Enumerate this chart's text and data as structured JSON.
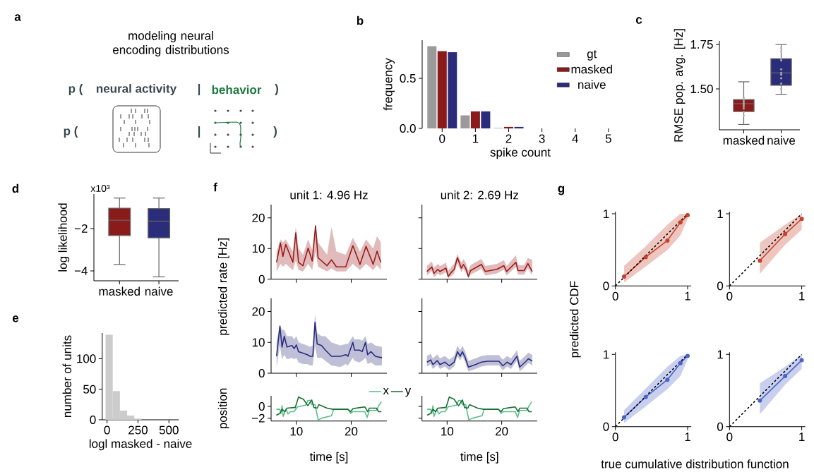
{
  "chart_data": [
    {
      "type": "other",
      "title": "modeling neural encoding distributions",
      "annotations": [
        "a",
        "p (",
        "neural activity",
        "|",
        "behavior",
        ")",
        "p (",
        "|",
        ")"
      ]
    },
    {
      "type": "bar",
      "annotations": [
        "b"
      ],
      "categories": [
        "0",
        "1",
        "2",
        "3",
        "4",
        "5"
      ],
      "xlabel": "spike count",
      "ylabel": "frequency",
      "ylim": [
        0,
        0.88
      ],
      "yticks": [
        {
          "value": 0,
          "label": "0.0"
        },
        {
          "value": 0.5,
          "label": "0.5"
        }
      ],
      "legend": "top right",
      "series": [
        {
          "name": "gt",
          "color": "#9a9a9a",
          "values": [
            0.82,
            0.13,
            0.005,
            0,
            0,
            0
          ]
        },
        {
          "name": "masked",
          "color": "#8b1a1a",
          "values": [
            0.77,
            0.17,
            0.015,
            0,
            0,
            0
          ]
        },
        {
          "name": "naive",
          "color": "#2b2d7a",
          "values": [
            0.76,
            0.17,
            0.015,
            0,
            0,
            0
          ]
        }
      ]
    },
    {
      "type": "box",
      "annotations": [
        "c"
      ],
      "categories": [
        "masked",
        "naive"
      ],
      "ylabel": "RMSE pop. avg. [Hz]",
      "ylim": [
        1.27,
        1.77
      ],
      "yticks": [
        {
          "value": 1.5,
          "label": "1.50"
        },
        {
          "value": 1.75,
          "label": "1.75"
        }
      ],
      "colors": [
        "#8b1a1a",
        "#2b2d7a"
      ],
      "boxes": [
        {
          "low": 1.3,
          "q1": 1.373,
          "median": 1.417,
          "q3": 1.44,
          "high": 1.54
        },
        {
          "low": 1.47,
          "q1": 1.52,
          "median": 1.59,
          "q3": 1.67,
          "high": 1.75
        }
      ],
      "series": [
        {
          "type": "scatter",
          "color": "#b0b0b0",
          "x": [
            "masked",
            "masked",
            "masked",
            "masked",
            "masked",
            "masked",
            "masked",
            "masked",
            "masked",
            "naive",
            "naive",
            "naive",
            "naive",
            "naive",
            "naive",
            "naive",
            "naive",
            "naive",
            "naive"
          ],
          "values": [
            1.45,
            1.44,
            1.43,
            1.42,
            1.41,
            1.4,
            1.39,
            1.37,
            1.35,
            1.73,
            1.71,
            1.67,
            1.66,
            1.61,
            1.59,
            1.58,
            1.56,
            1.53,
            1.5
          ]
        }
      ]
    },
    {
      "type": "box",
      "annotations": [
        "d",
        "x10³"
      ],
      "categories": [
        "masked",
        "naive"
      ],
      "ylabel": "log likelihood",
      "ylim": [
        -4.47,
        -0.37
      ],
      "yticks": [
        {
          "value": -4,
          "label": "−4"
        },
        {
          "value": -2,
          "label": "−2"
        }
      ],
      "colors": [
        "#8b1a1a",
        "#2b2d7a"
      ],
      "boxes": [
        {
          "low": -3.7,
          "q1": -2.33,
          "median": -1.61,
          "q3": -1.04,
          "high": -0.56
        },
        {
          "low": -4.28,
          "q1": -2.44,
          "median": -1.65,
          "q3": -1.06,
          "high": -0.56
        }
      ]
    },
    {
      "type": "histogram",
      "annotations": [
        "e"
      ],
      "xlabel": "logl masked - naive",
      "ylabel": "number of units",
      "color": "#cccccc",
      "bins": [
        -12,
        46,
        104,
        162,
        220,
        278,
        336,
        394,
        452,
        510,
        568
      ],
      "values": [
        139,
        47,
        15,
        7,
        2,
        0,
        0,
        0,
        0,
        0
      ],
      "xlim": [
        -39,
        580
      ],
      "xticks": [
        0,
        250,
        500
      ],
      "ylim": [
        0,
        142
      ],
      "yticks": [
        0,
        50,
        100
      ]
    },
    {
      "type": "line",
      "annotations": [
        "f"
      ],
      "title": "unit 1: 4.96 Hz",
      "ylabel": "predicted rate [Hz]",
      "xlim": [
        5.4,
        26.5
      ],
      "xticks": [
        10,
        20
      ],
      "ylim": [
        0,
        24.3
      ],
      "yticks": [
        0,
        10,
        20
      ],
      "tick_labels": "y",
      "series": [
        {
          "color": "#9b1b1b",
          "x": [
            6.4,
            7.1,
            7.55,
            8.07,
            9.36,
            9.9,
            10.4,
            11.2,
            12.15,
            12.9,
            13.5,
            13.95,
            15.6,
            16.4,
            17.3,
            19.0,
            20.3,
            21.6,
            22.7,
            24.0,
            24.7,
            25.4
          ],
          "values": [
            5.5,
            11.8,
            7.4,
            11.3,
            5.5,
            15.1,
            5.5,
            4.4,
            10.1,
            5.9,
            17.4,
            7.0,
            4.4,
            6.3,
            4.0,
            4.0,
            10.9,
            4.8,
            10.7,
            4.8,
            9.1,
            5.5
          ],
          "lower": [
            2.5,
            5,
            4,
            5,
            3,
            6,
            3,
            2.5,
            5,
            3,
            9,
            4,
            2.5,
            3.5,
            2.5,
            2.5,
            5,
            3,
            5,
            3,
            4.5,
            3
          ],
          "upper": [
            9,
            13,
            12,
            13,
            9,
            17,
            10,
            8,
            13,
            9.5,
            17.5,
            12,
            8,
            17,
            9,
            8,
            13.5,
            9,
            13,
            10,
            14,
            12
          ]
        }
      ]
    },
    {
      "type": "line",
      "title": "unit 2: 2.69 Hz",
      "xlim": [
        5.4,
        26.5
      ],
      "xticks": [
        10,
        20
      ],
      "ylim": [
        0,
        24.3
      ],
      "yticks": [
        0,
        10,
        20
      ],
      "tick_labels": false,
      "series": [
        {
          "color": "#9b1b1b",
          "x": [
            6.3,
            7.2,
            7.6,
            8.3,
            8.7,
            9.8,
            10.2,
            10.9,
            11.3,
            11.9,
            12.6,
            13.0,
            13.4,
            13.9,
            14.3,
            16.3,
            17.0,
            19.1,
            20.0,
            20.4,
            20.9,
            22.6,
            23.0,
            24.1,
            24.8,
            25.6
          ],
          "values": [
            2.5,
            4.0,
            1.9,
            3.2,
            2.5,
            3.6,
            0.9,
            2.5,
            3.2,
            7.0,
            3.6,
            4.8,
            3.6,
            0.9,
            2.8,
            4.8,
            2.5,
            3.2,
            4.0,
            4.4,
            2.5,
            5.5,
            2.8,
            2.8,
            5.1,
            2.5
          ],
          "lower": [
            1.2,
            2.7,
            0.6,
            1.9,
            1.2,
            2.3,
            0.2,
            1.2,
            1.9,
            5.2,
            2.3,
            3.3,
            2.3,
            0.2,
            1.5,
            3.3,
            1.2,
            1.9,
            2.7,
            3.1,
            1.2,
            4.0,
            1.5,
            1.5,
            3.6,
            1.2
          ],
          "upper": [
            4.3,
            5.8,
            3.7,
            5.0,
            4.3,
            5.4,
            2.7,
            4.3,
            5.0,
            8.2,
            5.4,
            6.6,
            5.4,
            2.7,
            4.6,
            6.6,
            4.3,
            5.0,
            5.8,
            6.2,
            4.3,
            7.8,
            4.6,
            4.6,
            6.9,
            6.3
          ]
        }
      ]
    },
    {
      "type": "line",
      "xlim": [
        5.4,
        26.5
      ],
      "xticks": [
        10,
        20
      ],
      "ylim": [
        0,
        24.3
      ],
      "yticks": [
        0,
        10,
        20
      ],
      "tick_labels": "y",
      "series": [
        {
          "color": "#2b2d7a",
          "x": [
            6.4,
            7.0,
            7.4,
            7.8,
            8.3,
            9.2,
            9.6,
            10.0,
            10.4,
            11.2,
            12.0,
            12.5,
            13.0,
            13.4,
            13.8,
            14.6,
            15.3,
            16.4,
            18.0,
            19.0,
            19.4,
            20.3,
            20.6,
            21.5,
            22.0,
            22.6,
            23.0,
            23.6,
            24.4,
            25.6
          ],
          "values": [
            5.5,
            15.2,
            8.5,
            12.0,
            8.5,
            9.0,
            8.0,
            9.2,
            7.0,
            6.5,
            6.0,
            5.5,
            5.5,
            16.5,
            9.5,
            9.0,
            7.5,
            5.5,
            5.5,
            6.0,
            5.5,
            10.0,
            7.5,
            7.5,
            7.0,
            10.0,
            6.0,
            7.0,
            5.5,
            5.0
          ],
          "lower": [
            2,
            9,
            4.5,
            6,
            4.5,
            5,
            4.5,
            5,
            3.5,
            3,
            3,
            2.5,
            2.5,
            9,
            5,
            5,
            4,
            2.5,
            2,
            3,
            2.5,
            5,
            4,
            3.5,
            4,
            5,
            3,
            3.5,
            2.5,
            2.5
          ],
          "upper": [
            10,
            16,
            14,
            14,
            12,
            12,
            11,
            12,
            10,
            9.5,
            9,
            8.5,
            9,
            19,
            13,
            12,
            12,
            10,
            9,
            9.5,
            9.5,
            12,
            11,
            11,
            10.5,
            12,
            9.5,
            10,
            9,
            8.5
          ]
        }
      ]
    },
    {
      "type": "line",
      "xlim": [
        5.4,
        26.5
      ],
      "xticks": [
        10,
        20
      ],
      "ylim": [
        0,
        24.3
      ],
      "yticks": [
        0,
        10,
        20
      ],
      "tick_labels": false,
      "series": [
        {
          "color": "#2b2d7a",
          "x": [
            6.3,
            7.0,
            7.4,
            8.2,
            8.7,
            9.6,
            10.4,
            11.3,
            11.9,
            12.4,
            12.8,
            13.3,
            13.9,
            15.2,
            16.3,
            17.4,
            19.5,
            20.2,
            21.0,
            21.7,
            22.8,
            23.3,
            24.3,
            24.9,
            25.6
          ],
          "values": [
            3.6,
            4.3,
            2.8,
            4.1,
            2.8,
            3.6,
            2.4,
            3.6,
            7.0,
            5.5,
            7.0,
            5.1,
            2.0,
            2.8,
            3.6,
            3.9,
            3.9,
            2.4,
            3.6,
            2.8,
            5.5,
            2.0,
            3.6,
            4.7,
            3.9
          ],
          "lower": [
            2.2,
            2.9,
            1.4,
            2.7,
            1.4,
            2.2,
            1.0,
            2.2,
            5.6,
            4.1,
            5.6,
            3.7,
            0.6,
            1.4,
            2.2,
            2.5,
            2.5,
            1.0,
            2.2,
            1.4,
            4.1,
            0.6,
            2.2,
            3.3,
            2.5
          ],
          "upper": [
            5.6,
            6.3,
            4.8,
            6.1,
            4.8,
            5.6,
            4.4,
            5.6,
            9.0,
            7.5,
            9.0,
            7.1,
            4.0,
            4.8,
            5.6,
            5.9,
            5.9,
            4.4,
            5.6,
            4.8,
            7.5,
            4.0,
            5.6,
            6.7,
            5.9
          ]
        }
      ]
    },
    {
      "type": "line",
      "xlabel": "time [s]",
      "ylabel": "position",
      "xlim": [
        5.4,
        26.5
      ],
      "xticks": [
        10,
        20
      ],
      "ylim": [
        -2.5,
        1.8
      ],
      "yticks": [
        {
          "value": -2,
          "label": "−2"
        },
        0
      ],
      "legend": "top",
      "series": [
        {
          "name": "x",
          "color": "#5bbf8a",
          "x": [
            6.35,
            7.0,
            7.2,
            7.4,
            7.6,
            8.1,
            8.5,
            8.9,
            9.6,
            10.2,
            11.7,
            12.1,
            12.5,
            12.8,
            13.4,
            13.8,
            14.0,
            14.7,
            16.4,
            16.8,
            19.4,
            19.9,
            20.3,
            22.5,
            22.9,
            23.3,
            24.6,
            25.0,
            25.5
          ],
          "values": [
            -0.5,
            -0.5,
            -1.2,
            0.1,
            -1.7,
            -0.5,
            -1.3,
            -0.9,
            -0.9,
            -0.1,
            0.2,
            1.0,
            1.0,
            0.3,
            0.3,
            -1.5,
            -2.3,
            -2.0,
            -1.6,
            -0.5,
            -0.5,
            -1.2,
            -0.9,
            -0.9,
            -1.9,
            -0.7,
            -0.7,
            0.1,
            0.8
          ]
        },
        {
          "name": "y",
          "color": "#1a6e35",
          "x": [
            6.35,
            7.0,
            7.4,
            7.9,
            8.3,
            9.6,
            9.8,
            10.4,
            11.3,
            12.1,
            12.8,
            13.2,
            13.8,
            14.1,
            15.6,
            16.7,
            19.4,
            19.9,
            20.3,
            21.6,
            22.5,
            23.0,
            23.3,
            24.6,
            25.0,
            25.5
          ],
          "values": [
            -1.5,
            -1.2,
            -0.5,
            -0.9,
            -0.3,
            -0.2,
            -0.2,
            1.6,
            1.2,
            0.1,
            1.1,
            -0.2,
            -0.3,
            0.3,
            -0.3,
            -0.5,
            -0.5,
            -0.9,
            -0.4,
            -0.2,
            -0.1,
            -0.9,
            -0.3,
            -0.3,
            -0.9,
            -0.9
          ]
        }
      ]
    },
    {
      "type": "line",
      "xlabel": "time [s]",
      "xlim": [
        5.4,
        26.5
      ],
      "xticks": [
        10,
        20
      ],
      "ylim": [
        -2.5,
        1.8
      ],
      "yticks": [
        -2,
        0
      ],
      "tick_labels": "x",
      "series": [
        {
          "color": "#5bbf8a",
          "x": [
            6.35,
            7.0,
            7.2,
            7.4,
            7.6,
            8.1,
            8.5,
            8.9,
            9.6,
            10.2,
            11.7,
            12.1,
            12.5,
            12.8,
            13.4,
            13.8,
            14.0,
            14.7,
            16.4,
            16.8,
            19.4,
            19.9,
            20.3,
            22.5,
            22.9,
            23.3,
            24.6,
            25.0,
            25.5
          ],
          "values": [
            -0.5,
            -0.5,
            -1.2,
            0.1,
            -1.7,
            -0.5,
            -1.3,
            -0.9,
            -0.9,
            -0.1,
            0.2,
            1.0,
            1.0,
            0.3,
            0.3,
            -1.5,
            -2.3,
            -2.0,
            -1.6,
            -0.5,
            -0.5,
            -1.2,
            -0.9,
            -0.9,
            -1.9,
            -0.7,
            -0.7,
            0.1,
            0.8
          ]
        },
        {
          "color": "#1a6e35",
          "x": [
            6.35,
            7.0,
            7.4,
            7.9,
            8.3,
            9.6,
            9.8,
            10.4,
            11.3,
            12.1,
            12.8,
            13.2,
            13.8,
            14.1,
            15.6,
            16.7,
            19.4,
            19.9,
            20.3,
            21.6,
            22.5,
            23.0,
            23.3,
            24.6,
            25.0,
            25.5
          ],
          "values": [
            -1.5,
            -1.2,
            -0.5,
            -0.9,
            -0.3,
            -0.2,
            -0.2,
            1.6,
            1.2,
            0.1,
            1.1,
            -0.2,
            -0.3,
            0.3,
            -0.3,
            -0.5,
            -0.5,
            -0.9,
            -0.4,
            -0.2,
            -0.1,
            -0.9,
            -0.3,
            -0.3,
            -0.9,
            -0.9
          ]
        }
      ]
    },
    {
      "type": "line",
      "annotations": [
        "g"
      ],
      "ylabel": "predicted CDF",
      "xlim": [
        0,
        1.05
      ],
      "xticks": [
        0,
        1
      ],
      "ylim": [
        0,
        1.03
      ],
      "yticks": [
        0,
        1
      ],
      "marker": "circle",
      "series": [
        {
          "color": "#c8402c",
          "x": [
            0.12,
            0.42,
            0.72,
            0.9,
            1.0
          ],
          "values": [
            0.13,
            0.4,
            0.63,
            0.88,
            0.98
          ],
          "lower": [
            0.05,
            0.27,
            0.5,
            0.7,
            0.93
          ],
          "upper": [
            0.28,
            0.55,
            0.85,
            1.0,
            1.0
          ]
        },
        {
          "color": "#000000",
          "x": [
            0,
            1
          ],
          "values": [
            0,
            1
          ],
          "marker": "none",
          "line_style": "dashed"
        }
      ]
    },
    {
      "type": "line",
      "xlim": [
        0,
        1.05
      ],
      "xticks": [
        0,
        1
      ],
      "ylim": [
        0,
        1.03
      ],
      "yticks": [
        0,
        1
      ],
      "marker": "circle",
      "series": [
        {
          "color": "#c8402c",
          "x": [
            0.42,
            0.77,
            1.0
          ],
          "values": [
            0.35,
            0.72,
            0.93
          ],
          "lower": [
            0.17,
            0.57,
            0.78
          ],
          "upper": [
            0.6,
            0.85,
            1.0
          ]
        },
        {
          "color": "#000000",
          "x": [
            0,
            1
          ],
          "values": [
            0,
            1
          ],
          "marker": "none",
          "line_style": "dashed"
        }
      ]
    },
    {
      "type": "line",
      "xlabel": "true cumulative distribution function",
      "xlim": [
        0,
        1.05
      ],
      "xticks": [
        0,
        1
      ],
      "ylim": [
        0,
        1.03
      ],
      "yticks": [
        0,
        1
      ],
      "marker": "circle",
      "series": [
        {
          "color": "#4a63c8",
          "x": [
            0.12,
            0.42,
            0.72,
            0.9,
            1.0
          ],
          "values": [
            0.13,
            0.41,
            0.65,
            0.88,
            0.98
          ],
          "lower": [
            0.05,
            0.28,
            0.52,
            0.7,
            0.93
          ],
          "upper": [
            0.23,
            0.53,
            0.83,
            0.98,
            1.0
          ]
        },
        {
          "color": "#000000",
          "x": [
            0,
            1
          ],
          "values": [
            0,
            1
          ],
          "marker": "none",
          "line_style": "dashed"
        }
      ]
    },
    {
      "type": "line",
      "xlim": [
        0,
        1.05
      ],
      "xticks": [
        0,
        1
      ],
      "ylim": [
        0,
        1.03
      ],
      "yticks": [
        0,
        1
      ],
      "marker": "circle",
      "series": [
        {
          "color": "#4a63c8",
          "x": [
            0.42,
            0.77,
            1.0
          ],
          "values": [
            0.36,
            0.7,
            0.92
          ],
          "lower": [
            0.17,
            0.58,
            0.8
          ],
          "upper": [
            0.6,
            0.83,
            1.0
          ]
        },
        {
          "color": "#000000",
          "x": [
            0,
            1
          ],
          "values": [
            0,
            1
          ],
          "marker": "none",
          "line_style": "dashed"
        }
      ]
    }
  ]
}
